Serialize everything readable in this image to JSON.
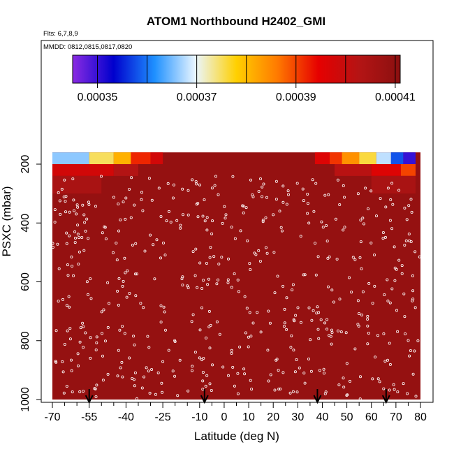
{
  "chart_data": {
    "type": "heatmap",
    "title": "ATOM1 Northbound H2402_GMI",
    "flights_note": "Flts: 6,7,8,9",
    "dates_note": "MMDD: 0812,0815,0817,0820",
    "xlabel": "Latitude (deg N)",
    "ylabel": "PSXC (mbar)",
    "xlim": [
      -70,
      80
    ],
    "ylim": [
      1000,
      160
    ],
    "x_ticks": [
      -70,
      -55,
      -40,
      -25,
      -10,
      0,
      10,
      20,
      30,
      40,
      50,
      60,
      70,
      80
    ],
    "x_minor_ticks": [
      -65,
      -60,
      -50,
      -45,
      -35,
      -30,
      -20,
      -15,
      -5,
      5,
      15,
      25,
      35,
      45,
      55,
      65,
      75
    ],
    "y_ticks": [
      200,
      400,
      600,
      800,
      1000
    ],
    "colorbar": {
      "min": 0.000345,
      "max": 0.000411,
      "tick_values": [
        0.00035,
        0.00037,
        0.00039,
        0.00041
      ],
      "tick_labels": [
        "0.00035",
        "0.00037",
        "0.00039",
        "0.00041"
      ],
      "stops": [
        "#8a2be2",
        "#0000cd",
        "#1e90ff",
        "#eaf6ff",
        "#ffd000",
        "#ff7a00",
        "#e60000",
        "#b41414",
        "#8b1010"
      ]
    },
    "background_value": 0.000409,
    "upper_band": [
      {
        "x": [
          -70,
          -55
        ],
        "p": [
          160,
          200
        ],
        "value": 0.000366
      },
      {
        "x": [
          -55,
          -45
        ],
        "p": [
          160,
          200
        ],
        "value": 0.000375
      },
      {
        "x": [
          -45,
          -38
        ],
        "p": [
          160,
          200
        ],
        "value": 0.000381
      },
      {
        "x": [
          -38,
          -30
        ],
        "p": [
          160,
          200
        ],
        "value": 0.000392
      },
      {
        "x": [
          -30,
          -25
        ],
        "p": [
          160,
          200
        ],
        "value": 0.000398
      },
      {
        "x": [
          37,
          43
        ],
        "p": [
          160,
          200
        ],
        "value": 0.000396
      },
      {
        "x": [
          43,
          48
        ],
        "p": [
          160,
          200
        ],
        "value": 0.000391
      },
      {
        "x": [
          48,
          55
        ],
        "p": [
          160,
          200
        ],
        "value": 0.000384
      },
      {
        "x": [
          55,
          62
        ],
        "p": [
          160,
          200
        ],
        "value": 0.000376
      },
      {
        "x": [
          62,
          68
        ],
        "p": [
          160,
          200
        ],
        "value": 0.000368
      },
      {
        "x": [
          68,
          73
        ],
        "p": [
          160,
          200
        ],
        "value": 0.000358
      },
      {
        "x": [
          73,
          78
        ],
        "p": [
          160,
          200
        ],
        "value": 0.00035
      },
      {
        "x": [
          -70,
          -45
        ],
        "p": [
          200,
          240
        ],
        "value": 0.000398
      },
      {
        "x": [
          -45,
          -35
        ],
        "p": [
          200,
          240
        ],
        "value": 0.000403
      },
      {
        "x": [
          45,
          60
        ],
        "p": [
          200,
          240
        ],
        "value": 0.000402
      },
      {
        "x": [
          60,
          72
        ],
        "p": [
          200,
          240
        ],
        "value": 0.000396
      },
      {
        "x": [
          72,
          78
        ],
        "p": [
          200,
          240
        ],
        "value": 0.00039
      },
      {
        "x": [
          -70,
          -50
        ],
        "p": [
          240,
          300
        ],
        "value": 0.000405
      },
      {
        "x": [
          60,
          78
        ],
        "p": [
          240,
          300
        ],
        "value": 0.000405
      }
    ],
    "flight_paths_latitude": [
      -55,
      -8,
      38,
      66
    ],
    "observation_markers": "open circles along aircraft profiles"
  }
}
